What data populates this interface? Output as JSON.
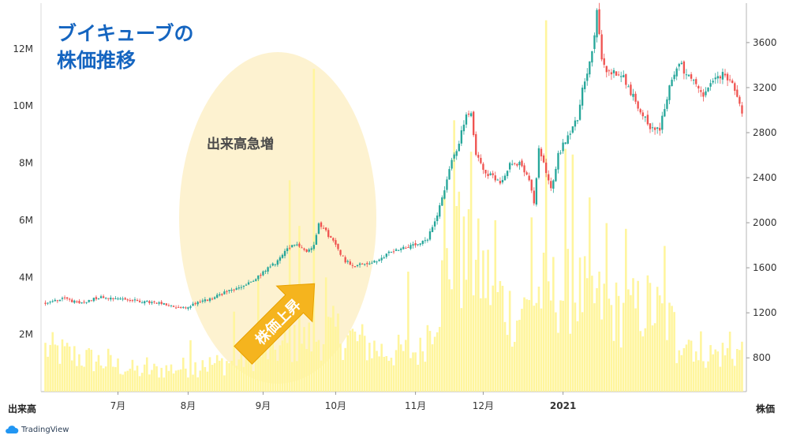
{
  "title_lines": [
    "ブイキューブの",
    "株価推移"
  ],
  "annotations": {
    "volume_spike": "出来高急増",
    "price_rise": "株価上昇"
  },
  "footer": {
    "logo_text": "TradingView"
  },
  "colors": {
    "up": "#26a69a",
    "down": "#ef5350",
    "volume": "#fff59d",
    "highlight": "#fdf0c8",
    "arrow": "#f5b41e",
    "title": "#1565c0"
  },
  "chart_data": {
    "type": "candlestick+volume",
    "x_tick_labels": [
      "7月",
      "8月",
      "9月",
      "10月",
      "11月",
      "12月",
      "2021"
    ],
    "left_axis": {
      "title": "出来高",
      "ticks": [
        "2M",
        "4M",
        "6M",
        "8M",
        "10M",
        "12M"
      ],
      "range": [
        0,
        13600000
      ]
    },
    "right_axis": {
      "title": "株価",
      "ticks": [
        "800",
        "1200",
        "1600",
        "2000",
        "2400",
        "2800",
        "3200",
        "3600"
      ],
      "range": [
        500,
        3950
      ]
    },
    "price_control_points": [
      [
        0,
        1290
      ],
      [
        8,
        1330
      ],
      [
        14,
        1280
      ],
      [
        22,
        1340
      ],
      [
        30,
        1330
      ],
      [
        40,
        1300
      ],
      [
        48,
        1280
      ],
      [
        54,
        1250
      ],
      [
        58,
        1240
      ],
      [
        62,
        1290
      ],
      [
        68,
        1320
      ],
      [
        74,
        1380
      ],
      [
        80,
        1420
      ],
      [
        86,
        1480
      ],
      [
        90,
        1560
      ],
      [
        96,
        1660
      ],
      [
        100,
        1760
      ],
      [
        104,
        1820
      ],
      [
        108,
        1740
      ],
      [
        111,
        1800
      ],
      [
        113,
        2010
      ],
      [
        116,
        1920
      ],
      [
        120,
        1800
      ],
      [
        124,
        1660
      ],
      [
        128,
        1620
      ],
      [
        133,
        1640
      ],
      [
        138,
        1660
      ],
      [
        142,
        1740
      ],
      [
        148,
        1780
      ],
      [
        154,
        1800
      ],
      [
        158,
        1850
      ],
      [
        162,
        2080
      ],
      [
        165,
        2300
      ],
      [
        168,
        2550
      ],
      [
        170,
        2650
      ],
      [
        172,
        2800
      ],
      [
        174,
        2960
      ],
      [
        176,
        2950
      ],
      [
        178,
        2600
      ],
      [
        182,
        2450
      ],
      [
        188,
        2360
      ],
      [
        192,
        2520
      ],
      [
        196,
        2520
      ],
      [
        200,
        2380
      ],
      [
        202,
        2160
      ],
      [
        204,
        2640
      ],
      [
        206,
        2540
      ],
      [
        209,
        2290
      ],
      [
        212,
        2600
      ],
      [
        216,
        2780
      ],
      [
        220,
        2920
      ],
      [
        222,
        3200
      ],
      [
        224,
        3350
      ],
      [
        226,
        3500
      ],
      [
        228,
        3860
      ],
      [
        230,
        3450
      ],
      [
        232,
        3340
      ],
      [
        238,
        3330
      ],
      [
        242,
        3160
      ],
      [
        246,
        3000
      ],
      [
        250,
        2850
      ],
      [
        254,
        2830
      ],
      [
        258,
        3210
      ],
      [
        262,
        3430
      ],
      [
        264,
        3350
      ],
      [
        268,
        3240
      ],
      [
        272,
        3120
      ],
      [
        276,
        3260
      ],
      [
        280,
        3310
      ],
      [
        284,
        3270
      ],
      [
        286,
        3100
      ],
      [
        288,
        2960
      ]
    ],
    "volume_spikes": [
      [
        26,
        1500000
      ],
      [
        42,
        1200000
      ],
      [
        60,
        1800000
      ],
      [
        65,
        1100000
      ],
      [
        78,
        2800000
      ],
      [
        88,
        4000000
      ],
      [
        91,
        2400000
      ],
      [
        101,
        7400000
      ],
      [
        105,
        5800000
      ],
      [
        111,
        11300000
      ],
      [
        116,
        4000000
      ],
      [
        127,
        2200000
      ],
      [
        150,
        4200000
      ],
      [
        165,
        7000000
      ],
      [
        169,
        9500000
      ],
      [
        171,
        7000000
      ],
      [
        176,
        8400000
      ],
      [
        186,
        6000000
      ],
      [
        197,
        2900000
      ],
      [
        201,
        6100000
      ],
      [
        207,
        13000000
      ],
      [
        215,
        8500000
      ],
      [
        218,
        8300000
      ],
      [
        225,
        6800000
      ],
      [
        232,
        5900000
      ],
      [
        240,
        5700000
      ],
      [
        256,
        5100000
      ],
      [
        261,
        1000000
      ],
      [
        270,
        1100000
      ],
      [
        283,
        2100000
      ]
    ],
    "volume_baseline": [
      [
        0,
        1500000
      ],
      [
        40,
        700000
      ],
      [
        74,
        1000000
      ],
      [
        96,
        1500000
      ],
      [
        120,
        2100000
      ],
      [
        140,
        1400000
      ],
      [
        155,
        1400000
      ],
      [
        160,
        2600000
      ],
      [
        168,
        4800000
      ],
      [
        180,
        4200000
      ],
      [
        195,
        2500000
      ],
      [
        205,
        3500000
      ],
      [
        220,
        3500000
      ],
      [
        238,
        2700000
      ],
      [
        250,
        3000000
      ],
      [
        262,
        2100000
      ],
      [
        275,
        1300000
      ],
      [
        288,
        1400000
      ]
    ],
    "n_sessions": 289,
    "grid": false,
    "legend": "none"
  }
}
